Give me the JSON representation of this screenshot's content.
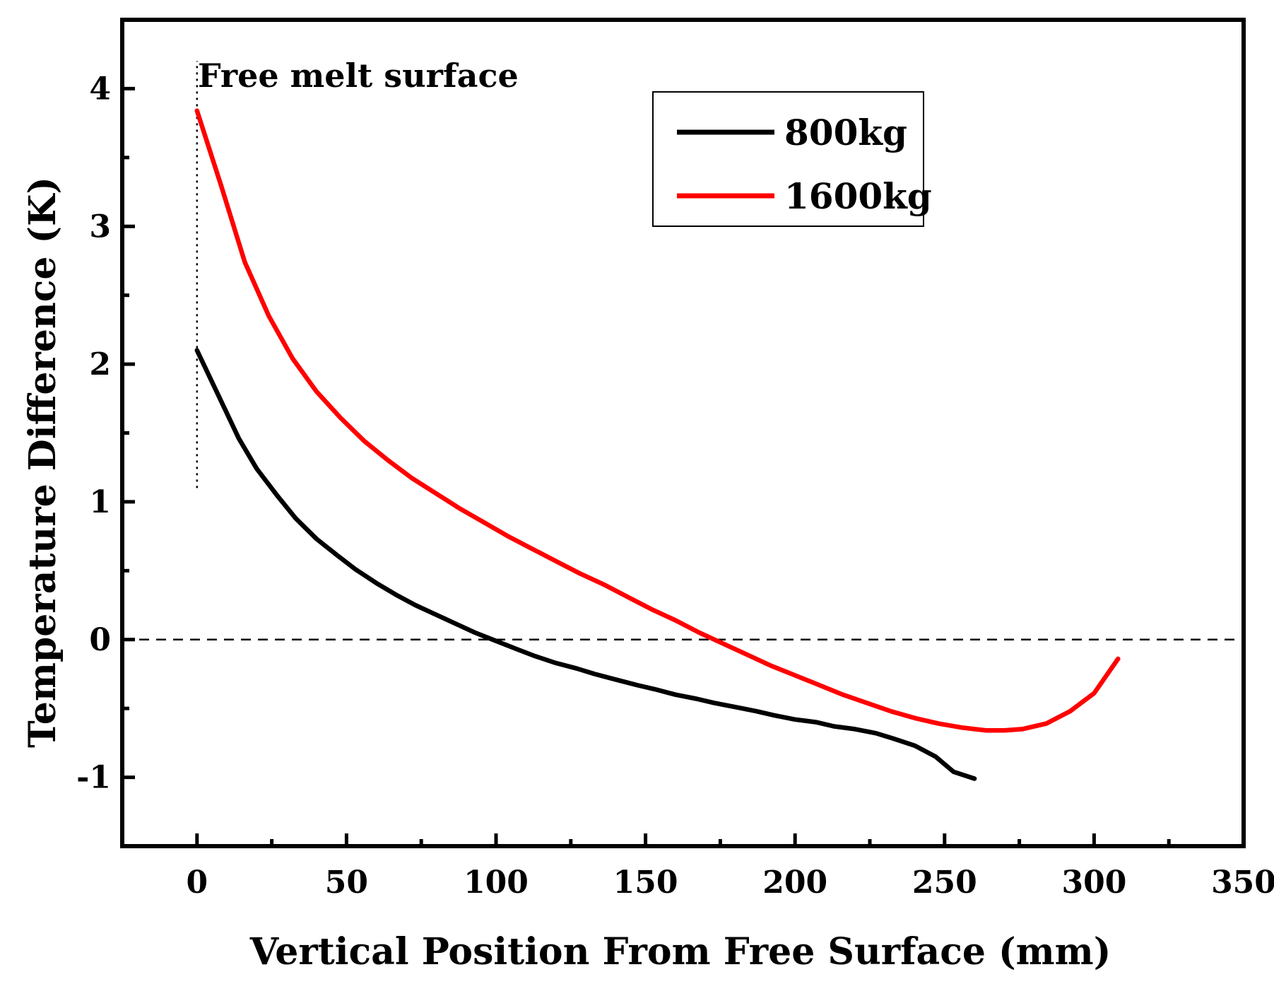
{
  "chart_data": {
    "type": "line",
    "title": "",
    "xlabel": "Vertical Position From Free Surface (mm)",
    "ylabel": "Temperature Difference (K)",
    "xlim": [
      -25,
      350
    ],
    "ylim": [
      -1.5,
      4.5
    ],
    "xticks": [
      0,
      50,
      100,
      150,
      200,
      250,
      300,
      350
    ],
    "xtick_labels": [
      "0",
      "50",
      "100",
      "150",
      "200",
      "250",
      "300",
      "350"
    ],
    "yticks": [
      -1,
      0,
      1,
      2,
      3,
      4
    ],
    "ytick_labels": [
      "-1",
      "0",
      "1",
      "2",
      "3",
      "4"
    ],
    "grid": false,
    "legend_position": "top-right",
    "series": [
      {
        "name": "800kg",
        "color": "#000000",
        "x": [
          0,
          7,
          14,
          20,
          27,
          33,
          40,
          47,
          53,
          60,
          67,
          73,
          80,
          87,
          93,
          100,
          107,
          113,
          120,
          127,
          133,
          140,
          147,
          153,
          160,
          167,
          173,
          180,
          187,
          193,
          200,
          207,
          213,
          220,
          227,
          233,
          240,
          247,
          253,
          260
        ],
        "y": [
          2.1,
          1.78,
          1.46,
          1.24,
          1.04,
          0.88,
          0.73,
          0.61,
          0.51,
          0.41,
          0.32,
          0.25,
          0.18,
          0.11,
          0.05,
          -0.01,
          -0.07,
          -0.12,
          -0.17,
          -0.21,
          -0.25,
          -0.29,
          -0.33,
          -0.36,
          -0.4,
          -0.43,
          -0.46,
          -0.49,
          -0.52,
          -0.55,
          -0.58,
          -0.6,
          -0.63,
          -0.65,
          -0.68,
          -0.72,
          -0.77,
          -0.85,
          -0.96,
          -1.01
        ]
      },
      {
        "name": "1600kg",
        "color": "#ff0000",
        "x": [
          0,
          8,
          16,
          24,
          32,
          40,
          48,
          56,
          64,
          72,
          80,
          88,
          96,
          104,
          112,
          120,
          128,
          136,
          144,
          152,
          160,
          168,
          176,
          184,
          192,
          200,
          208,
          216,
          224,
          232,
          240,
          248,
          256,
          264,
          270,
          276,
          284,
          292,
          300,
          308
        ],
        "y": [
          3.84,
          3.3,
          2.74,
          2.35,
          2.04,
          1.8,
          1.61,
          1.44,
          1.3,
          1.17,
          1.06,
          0.95,
          0.85,
          0.75,
          0.66,
          0.57,
          0.48,
          0.4,
          0.31,
          0.22,
          0.14,
          0.05,
          -0.03,
          -0.11,
          -0.19,
          -0.26,
          -0.33,
          -0.4,
          -0.46,
          -0.52,
          -0.57,
          -0.61,
          -0.64,
          -0.66,
          -0.66,
          -0.65,
          -0.61,
          -0.52,
          -0.39,
          -0.14
        ]
      }
    ],
    "reference_lines": {
      "zero_line_y": 0,
      "free_surface_x": 0,
      "free_surface_y_range": [
        1.1,
        4.2
      ]
    },
    "annotations": [
      {
        "text": "Free melt surface"
      }
    ]
  }
}
